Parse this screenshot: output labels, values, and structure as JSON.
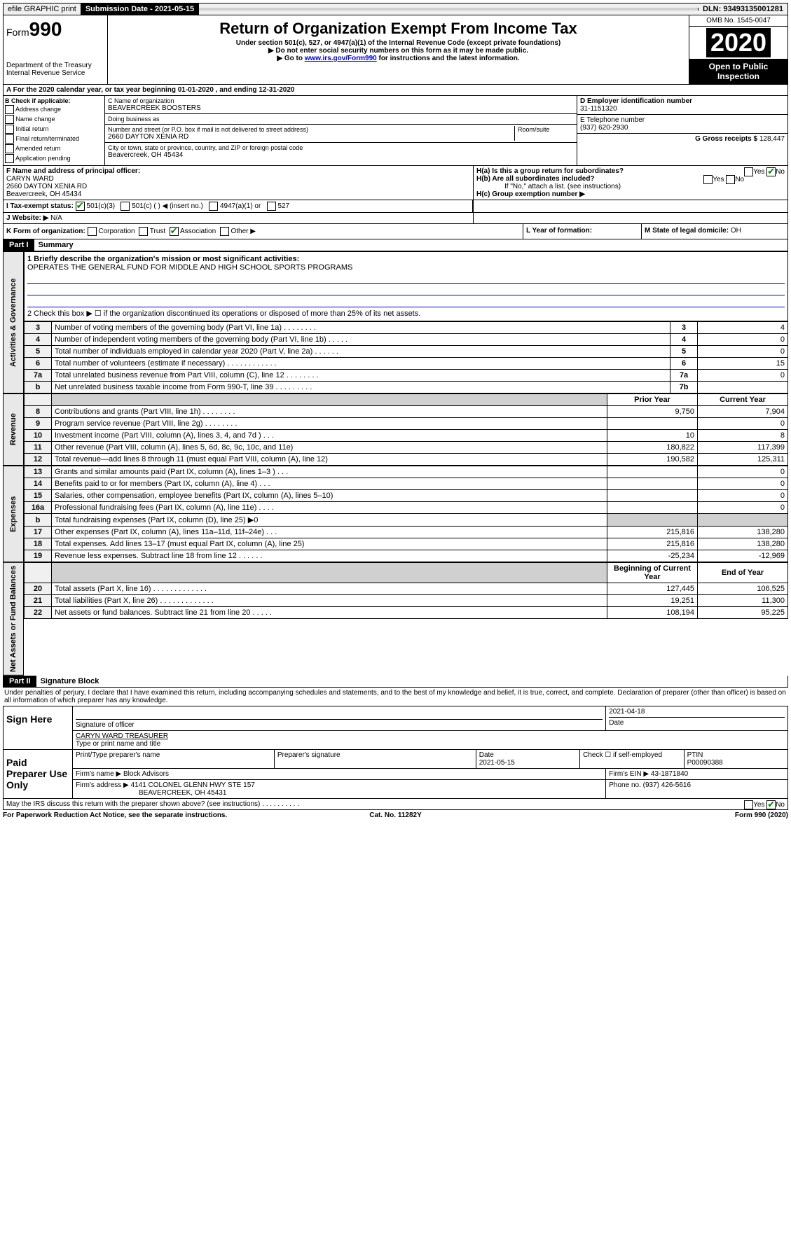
{
  "top": {
    "efile": "efile GRAPHIC print",
    "submission_label": "Submission Date - 2021-05-15",
    "dln": "DLN: 93493135001281"
  },
  "header": {
    "form_prefix": "Form",
    "form_number": "990",
    "dept": "Department of the Treasury",
    "irs": "Internal Revenue Service",
    "title": "Return of Organization Exempt From Income Tax",
    "sub1": "Under section 501(c), 527, or 4947(a)(1) of the Internal Revenue Code (except private foundations)",
    "sub2": "▶ Do not enter social security numbers on this form as it may be made public.",
    "sub3_pre": "▶ Go to ",
    "sub3_link": "www.irs.gov/Form990",
    "sub3_post": " for instructions and the latest information.",
    "omb": "OMB No. 1545-0047",
    "year": "2020",
    "open": "Open to Public Inspection"
  },
  "sectionA": "A For the 2020 calendar year, or tax year beginning 01-01-2020   , and ending 12-31-2020",
  "boxB": {
    "title": "B Check if applicable:",
    "opts": [
      "Address change",
      "Name change",
      "Initial return",
      "Final return/terminated",
      "Amended return",
      "Application pending"
    ]
  },
  "boxC": {
    "label": "C Name of organization",
    "name": "BEAVERCREEK BOOSTERS",
    "dba_label": "Doing business as",
    "addr_label": "Number and street (or P.O. box if mail is not delivered to street address)",
    "addr": "2660 DAYTON XENIA RD",
    "room_label": "Room/suite",
    "city_label": "City or town, state or province, country, and ZIP or foreign postal code",
    "city": "Beavercreek, OH  45434"
  },
  "boxD": {
    "label": "D Employer identification number",
    "ein": "31-1151320"
  },
  "boxE": {
    "label": "E Telephone number",
    "phone": "(937) 620-2930"
  },
  "boxG": {
    "label": "G Gross receipts $",
    "val": "128,447"
  },
  "boxF": {
    "label": "F  Name and address of principal officer:",
    "name": "CARYN WARD",
    "addr1": "2660 DAYTON XENIA RD",
    "addr2": "Beavercreek, OH  45434"
  },
  "boxH": {
    "a_label": "H(a)  Is this a group return for subordinates?",
    "b_label": "H(b)  Are all subordinates included?",
    "note": "If \"No,\" attach a list. (see instructions)",
    "c_label": "H(c)  Group exemption number ▶"
  },
  "boxI": {
    "label": "I  Tax-exempt status:",
    "opts": [
      "501(c)(3)",
      "501(c) (  ) ◀ (insert no.)",
      "4947(a)(1) or",
      "527"
    ]
  },
  "boxJ": {
    "label": "J  Website: ▶",
    "val": "N/A"
  },
  "boxK": {
    "label": "K Form of organization:",
    "opts": [
      "Corporation",
      "Trust",
      "Association",
      "Other ▶"
    ]
  },
  "boxL": {
    "label": "L Year of formation:"
  },
  "boxM": {
    "label": "M State of legal domicile:",
    "val": "OH"
  },
  "part1": {
    "header": "Part I",
    "title": "Summary",
    "line1_label": "1  Briefly describe the organization's mission or most significant activities:",
    "line1_val": "OPERATES THE GENERAL FUND FOR MIDDLE AND HIGH SCHOOL SPORTS PROGRAMS",
    "line2": "2   Check this box ▶ ☐  if the organization discontinued its operations or disposed of more than 25% of its net assets.",
    "governance_label": "Activities & Governance",
    "revenue_label": "Revenue",
    "expenses_label": "Expenses",
    "netassets_label": "Net Assets or Fund Balances",
    "prior_year": "Prior Year",
    "current_year": "Current Year",
    "begin_year": "Beginning of Current Year",
    "end_year": "End of Year",
    "rows_gov": [
      {
        "n": "3",
        "t": "Number of voting members of the governing body (Part VI, line 1a)  .    .    .    .    .    .    .    .",
        "c": "3",
        "v": "4"
      },
      {
        "n": "4",
        "t": "Number of independent voting members of the governing body (Part VI, line 1b)  .    .    .    .    .",
        "c": "4",
        "v": "0"
      },
      {
        "n": "5",
        "t": "Total number of individuals employed in calendar year 2020 (Part V, line 2a)  .    .    .    .    .    .",
        "c": "5",
        "v": "0"
      },
      {
        "n": "6",
        "t": "Total number of volunteers (estimate if necessary)  .    .    .    .    .    .    .    .    .    .    .    .",
        "c": "6",
        "v": "15"
      },
      {
        "n": "7a",
        "t": "Total unrelated business revenue from Part VIII, column (C), line 12  .    .    .    .    .    .    .    .",
        "c": "7a",
        "v": "0"
      },
      {
        "n": "b",
        "t": "Net unrelated business taxable income from Form 990-T, line 39  .    .    .    .    .    .    .    .    .",
        "c": "7b",
        "v": ""
      }
    ],
    "rows_rev": [
      {
        "n": "8",
        "t": "Contributions and grants (Part VIII, line 1h)  .    .    .    .    .    .    .    .",
        "p": "9,750",
        "c": "7,904"
      },
      {
        "n": "9",
        "t": "Program service revenue (Part VIII, line 2g)  .    .    .    .    .    .    .    .",
        "p": "",
        "c": "0"
      },
      {
        "n": "10",
        "t": "Investment income (Part VIII, column (A), lines 3, 4, and 7d )  .    .    .",
        "p": "10",
        "c": "8"
      },
      {
        "n": "11",
        "t": "Other revenue (Part VIII, column (A), lines 5, 6d, 8c, 9c, 10c, and 11e)",
        "p": "180,822",
        "c": "117,399"
      },
      {
        "n": "12",
        "t": "Total revenue—add lines 8 through 11 (must equal Part VIII, column (A), line 12)",
        "p": "190,582",
        "c": "125,311"
      }
    ],
    "rows_exp": [
      {
        "n": "13",
        "t": "Grants and similar amounts paid (Part IX, column (A), lines 1–3 )  .    .    .",
        "p": "",
        "c": "0"
      },
      {
        "n": "14",
        "t": "Benefits paid to or for members (Part IX, column (A), line 4)  .    .    .",
        "p": "",
        "c": "0"
      },
      {
        "n": "15",
        "t": "Salaries, other compensation, employee benefits (Part IX, column (A), lines 5–10)",
        "p": "",
        "c": "0"
      },
      {
        "n": "16a",
        "t": "Professional fundraising fees (Part IX, column (A), line 11e)  .    .    .    .",
        "p": "",
        "c": "0"
      },
      {
        "n": "b",
        "t": "Total fundraising expenses (Part IX, column (D), line 25) ▶0",
        "p": "shade",
        "c": "shade"
      },
      {
        "n": "17",
        "t": "Other expenses (Part IX, column (A), lines 11a–11d, 11f–24e)  .    .    .",
        "p": "215,816",
        "c": "138,280"
      },
      {
        "n": "18",
        "t": "Total expenses. Add lines 13–17 (must equal Part IX, column (A), line 25)",
        "p": "215,816",
        "c": "138,280"
      },
      {
        "n": "19",
        "t": "Revenue less expenses. Subtract line 18 from line 12  .    .    .    .    .    .",
        "p": "-25,234",
        "c": "-12,969"
      }
    ],
    "rows_net": [
      {
        "n": "20",
        "t": "Total assets (Part X, line 16)  .    .    .    .    .    .    .    .    .    .    .    .    .",
        "p": "127,445",
        "c": "106,525"
      },
      {
        "n": "21",
        "t": "Total liabilities (Part X, line 26)  .    .    .    .    .    .    .    .    .    .    .    .    .",
        "p": "19,251",
        "c": "11,300"
      },
      {
        "n": "22",
        "t": "Net assets or fund balances. Subtract line 21 from line 20  .    .    .    .    .",
        "p": "108,194",
        "c": "95,225"
      }
    ]
  },
  "part2": {
    "header": "Part II",
    "title": "Signature Block",
    "perjury": "Under penalties of perjury, I declare that I have examined this return, including accompanying schedules and statements, and to the best of my knowledge and belief, it is true, correct, and complete. Declaration of preparer (other than officer) is based on all information of which preparer has any knowledge.",
    "sign_here": "Sign Here",
    "sig_officer": "Signature of officer",
    "sig_date": "2021-04-18",
    "date_label": "Date",
    "officer_name": "CARYN WARD TREASURER",
    "type_name": "Type or print name and title",
    "paid_prep": "Paid Preparer Use Only",
    "prep_name_label": "Print/Type preparer's name",
    "prep_sig_label": "Preparer's signature",
    "prep_date_label": "Date",
    "prep_date": "2021-05-15",
    "check_self": "Check ☐ if self-employed",
    "ptin_label": "PTIN",
    "ptin": "P00090388",
    "firm_name_label": "Firm's name     ▶",
    "firm_name": "Block Advisors",
    "firm_ein_label": "Firm's EIN ▶",
    "firm_ein": "43-1871840",
    "firm_addr_label": "Firm's address ▶",
    "firm_addr1": "4141 COLONEL GLENN HWY STE 157",
    "firm_addr2": "BEAVERCREEK, OH  45431",
    "phone_label": "Phone no.",
    "phone": "(937) 426-5616",
    "discuss": "May the IRS discuss this return with the preparer shown above? (see instructions)  .    .    .    .    .    .    .    .    .    ."
  },
  "footer": {
    "left": "For Paperwork Reduction Act Notice, see the separate instructions.",
    "mid": "Cat. No. 11282Y",
    "right": "Form 990 (2020)"
  },
  "colors": {
    "link": "#0000cc",
    "check": "#008000"
  }
}
